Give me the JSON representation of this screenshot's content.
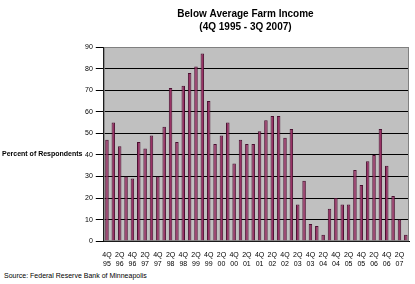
{
  "chart_data": {
    "type": "bar",
    "title": "Below Average Farm Income",
    "subtitle": "(4Q 1995 - 3Q 2007)",
    "y_label": "Percent of Respondents",
    "source": "Source: Federal Reserve Bank of Minneapolis",
    "categories": [
      "4Q 95",
      null,
      "2Q 96",
      null,
      "4Q 96",
      null,
      "2Q 97",
      null,
      "4Q 97",
      null,
      "2Q 98",
      null,
      "4Q 98",
      null,
      "2Q 99",
      null,
      "4Q 99",
      null,
      "2Q 00",
      null,
      "4Q 00",
      null,
      "2Q 01",
      null,
      "4Q 01",
      null,
      "2Q 02",
      null,
      "4Q 02",
      null,
      "2Q 03",
      null,
      "4Q 03",
      null,
      "2Q 04",
      null,
      "4Q 04",
      null,
      "2Q 05",
      null,
      "4Q 05",
      null,
      "2Q 06",
      null,
      "4Q 06",
      null,
      "2Q 07",
      null
    ],
    "values": [
      47,
      55,
      44,
      30,
      29,
      46,
      43,
      49,
      30,
      53,
      71,
      46,
      72,
      78,
      81,
      87,
      65,
      45,
      49,
      55,
      36,
      47,
      45,
      45,
      51,
      56,
      58,
      58,
      48,
      52,
      17,
      28,
      8,
      7,
      3,
      15,
      20,
      17,
      17,
      33,
      26,
      37,
      40,
      52,
      35,
      21,
      10,
      3
    ],
    "color": "#993366",
    "ylim": [
      0,
      90
    ],
    "yticks": [
      0,
      10,
      20,
      30,
      40,
      50,
      60,
      70,
      80,
      90
    ],
    "grid": true
  }
}
